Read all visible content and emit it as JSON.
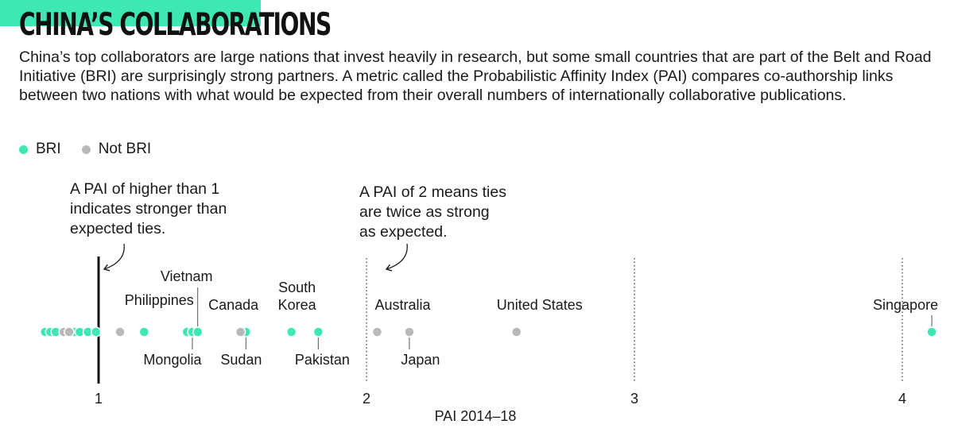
{
  "header": {
    "title": "CHINA’S COLLABORATIONS",
    "description": "China’s top collaborators are large nations that invest heavily in research, but some small countries that are part of the Belt and Road Initiative (BRI) are surprisingly strong partners. A metric called the Probabilistic Affinity Index (PAI) compares co-authorship links between two nations with what would be expected from their overall numbers of internationally collaborative publications."
  },
  "colors": {
    "accent": "#3ee8b5",
    "bri": "#3ee8b5",
    "not_bri": "#b9b9b9",
    "text": "#1a1a1a"
  },
  "legend": [
    {
      "label": "BRI",
      "color": "#3ee8b5"
    },
    {
      "label": "Not BRI",
      "color": "#b9b9b9"
    }
  ],
  "annotations": [
    {
      "text": "A PAI of higher than 1\nindicates stronger than\nexpected ties."
    },
    {
      "text": "A PAI of 2 means ties\nare twice as strong\nas expected."
    }
  ],
  "chart_data": {
    "type": "scatter",
    "title": "",
    "xlabel": "PAI 2014–18",
    "ylabel": "",
    "xlim": [
      0.75,
      4.12
    ],
    "xticks": [
      {
        "value": 1,
        "label": "1"
      },
      {
        "value": 2,
        "label": "2"
      },
      {
        "value": 3,
        "label": "3"
      },
      {
        "value": 4,
        "label": "4"
      }
    ],
    "reference_lines": [
      {
        "value": 1,
        "style": "solid"
      },
      {
        "value": 2,
        "style": "dotted"
      },
      {
        "value": 3,
        "style": "dotted"
      },
      {
        "value": 4,
        "style": "dotted"
      }
    ],
    "grid": false,
    "legend_position": "top-left",
    "series": [
      {
        "name": "BRI",
        "color": "#3ee8b5",
        "points": [
          {
            "x": 0.8
          },
          {
            "x": 0.82
          },
          {
            "x": 0.84
          },
          {
            "x": 0.91
          },
          {
            "x": 0.93
          },
          {
            "x": 0.96
          },
          {
            "x": 0.99
          },
          {
            "x": 1.17,
            "label": "Philippines"
          },
          {
            "x": 1.33
          },
          {
            "x": 1.35,
            "label": "Mongolia"
          },
          {
            "x": 1.37,
            "label": "Vietnam"
          },
          {
            "x": 1.55,
            "label": "Sudan"
          },
          {
            "x": 1.72,
            "label": "South Korea"
          },
          {
            "x": 1.82,
            "label": "Pakistan"
          },
          {
            "x": 4.11,
            "label": "Singapore"
          }
        ]
      },
      {
        "name": "Not BRI",
        "color": "#b9b9b9",
        "points": [
          {
            "x": 0.87
          },
          {
            "x": 0.89
          },
          {
            "x": 1.08
          },
          {
            "x": 1.53,
            "label": "Canada"
          },
          {
            "x": 2.04,
            "label": "Australia"
          },
          {
            "x": 2.16,
            "label": "Japan"
          },
          {
            "x": 2.56,
            "label": "United States"
          }
        ]
      }
    ]
  }
}
